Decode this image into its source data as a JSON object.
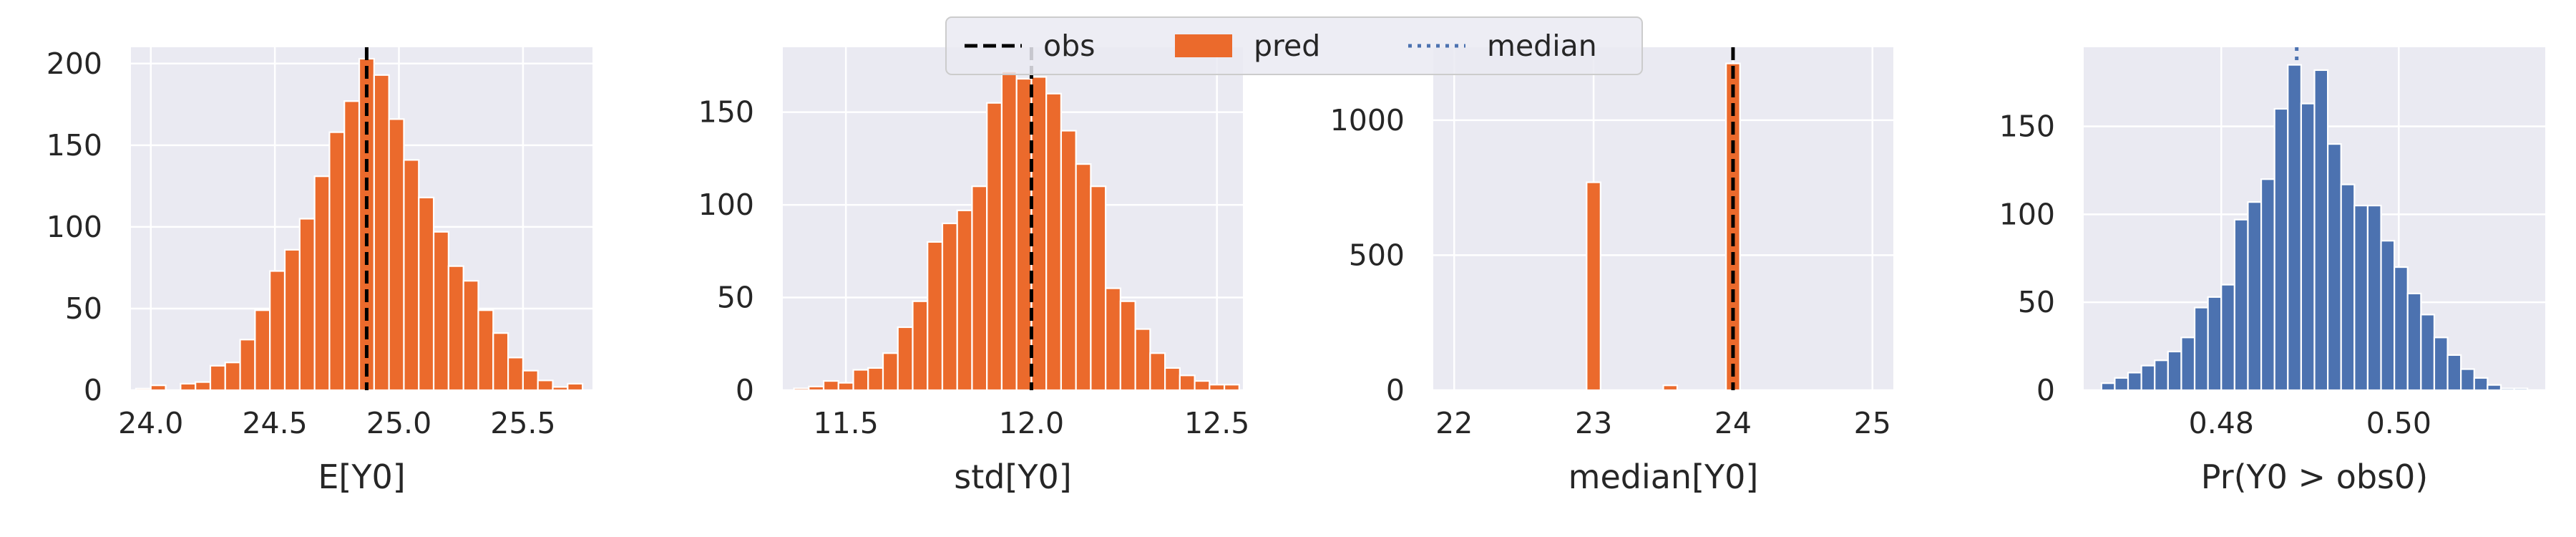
{
  "legend": {
    "items": [
      {
        "label": "obs",
        "style": "dashed",
        "color": "#000000"
      },
      {
        "label": "pred",
        "style": "patch",
        "color": "#EB6A2C"
      },
      {
        "label": "median",
        "style": "dotted",
        "color": "#4C72B0"
      }
    ],
    "placement": "upper center"
  },
  "colors": {
    "background": "#EAEAF2",
    "grid": "#FFFFFF",
    "pred": "#EB6A2C",
    "blue": "#4C72B0",
    "obs": "#000000"
  },
  "chart_data": [
    {
      "type": "bar",
      "kind": "histogram",
      "xlabel": "E[Y0]",
      "ylabel": "",
      "xlim": [
        23.92,
        25.78
      ],
      "ylim": [
        0,
        210
      ],
      "xticks": [
        24.0,
        24.5,
        25.0,
        25.5
      ],
      "xtick_labels": [
        "24.0",
        "24.5",
        "25.0",
        "25.5"
      ],
      "yticks": [
        0,
        50,
        100,
        150,
        200
      ],
      "ytick_labels": [
        "0",
        "50",
        "100",
        "150",
        "200"
      ],
      "bin_width": 0.06,
      "bin_starts": [
        23.94,
        24.0,
        24.06,
        24.12,
        24.18,
        24.24,
        24.3,
        24.36,
        24.42,
        24.48,
        24.54,
        24.6,
        24.66,
        24.72,
        24.78,
        24.84,
        24.9,
        24.96,
        25.02,
        25.08,
        25.14,
        25.2,
        25.26,
        25.32,
        25.38,
        25.44,
        25.5,
        25.56,
        25.62,
        25.68
      ],
      "values": [
        1,
        3,
        0,
        4,
        5,
        15,
        17,
        31,
        49,
        73,
        86,
        105,
        131,
        158,
        177,
        203,
        193,
        166,
        141,
        118,
        97,
        76,
        67,
        49,
        35,
        20,
        12,
        6,
        2,
        4
      ],
      "bar_color": "#EB6A2C",
      "obs_line": 24.87,
      "grid": true
    },
    {
      "type": "bar",
      "kind": "histogram",
      "xlabel": "std[Y0]",
      "ylabel": "",
      "xlim": [
        11.33,
        12.57
      ],
      "ylim": [
        0,
        185
      ],
      "xticks": [
        11.5,
        12.0,
        12.5
      ],
      "xtick_labels": [
        "11.5",
        "12.0",
        "12.5"
      ],
      "yticks": [
        0,
        50,
        100,
        150
      ],
      "ytick_labels": [
        "0",
        "50",
        "100",
        "150"
      ],
      "bin_width": 0.04,
      "bin_starts": [
        11.36,
        11.4,
        11.44,
        11.48,
        11.52,
        11.56,
        11.6,
        11.64,
        11.68,
        11.72,
        11.76,
        11.8,
        11.84,
        11.88,
        11.92,
        11.96,
        12.0,
        12.04,
        12.08,
        12.12,
        12.16,
        12.2,
        12.24,
        12.28,
        12.32,
        12.36,
        12.4,
        12.44,
        12.48,
        12.52
      ],
      "values": [
        1,
        2,
        5,
        4,
        11,
        12,
        20,
        34,
        48,
        80,
        90,
        97,
        110,
        155,
        172,
        168,
        169,
        160,
        140,
        122,
        110,
        55,
        48,
        33,
        20,
        12,
        8,
        5,
        3,
        3
      ],
      "bar_color": "#EB6A2C",
      "obs_line": 12.0,
      "grid": true
    },
    {
      "type": "bar",
      "kind": "histogram",
      "xlabel": "median[Y0]",
      "ylabel": "",
      "xlim": [
        21.85,
        25.15
      ],
      "ylim": [
        0,
        1270
      ],
      "xticks": [
        22,
        23,
        24,
        25
      ],
      "xtick_labels": [
        "22",
        "23",
        "24",
        "25"
      ],
      "yticks": [
        0,
        500,
        1000
      ],
      "ytick_labels": [
        "0",
        "500",
        "1000"
      ],
      "bin_width": 0.1,
      "bin_starts": [
        22.95,
        23.5,
        23.95
      ],
      "values": [
        770,
        18,
        1210
      ],
      "bar_color": "#EB6A2C",
      "obs_line": 24.0,
      "grid": true
    },
    {
      "type": "bar",
      "kind": "histogram",
      "xlabel": "Pr(Y0 > obs0)",
      "ylabel": "",
      "xlim": [
        0.4645,
        0.5165
      ],
      "ylim": [
        0,
        195
      ],
      "xticks": [
        0.48,
        0.5
      ],
      "xtick_labels": [
        "0.48",
        "0.50"
      ],
      "yticks": [
        0,
        50,
        100,
        150
      ],
      "ytick_labels": [
        "0",
        "50",
        "100",
        "150"
      ],
      "bin_width": 0.0015,
      "bin_starts": [
        0.4665,
        0.468,
        0.4695,
        0.471,
        0.4725,
        0.474,
        0.4755,
        0.477,
        0.4785,
        0.48,
        0.4815,
        0.483,
        0.4845,
        0.486,
        0.4875,
        0.489,
        0.4905,
        0.492,
        0.4935,
        0.495,
        0.4965,
        0.498,
        0.4995,
        0.501,
        0.5025,
        0.504,
        0.5055,
        0.507,
        0.5085,
        0.51,
        0.5115,
        0.513
      ],
      "values": [
        4,
        7,
        10,
        14,
        17,
        22,
        30,
        47,
        53,
        60,
        97,
        107,
        120,
        160,
        185,
        163,
        182,
        140,
        117,
        105,
        105,
        85,
        70,
        55,
        43,
        30,
        20,
        12,
        7,
        3,
        1,
        1
      ],
      "bar_color": "#4C72B0",
      "median_line": 0.4885,
      "grid": true
    }
  ]
}
